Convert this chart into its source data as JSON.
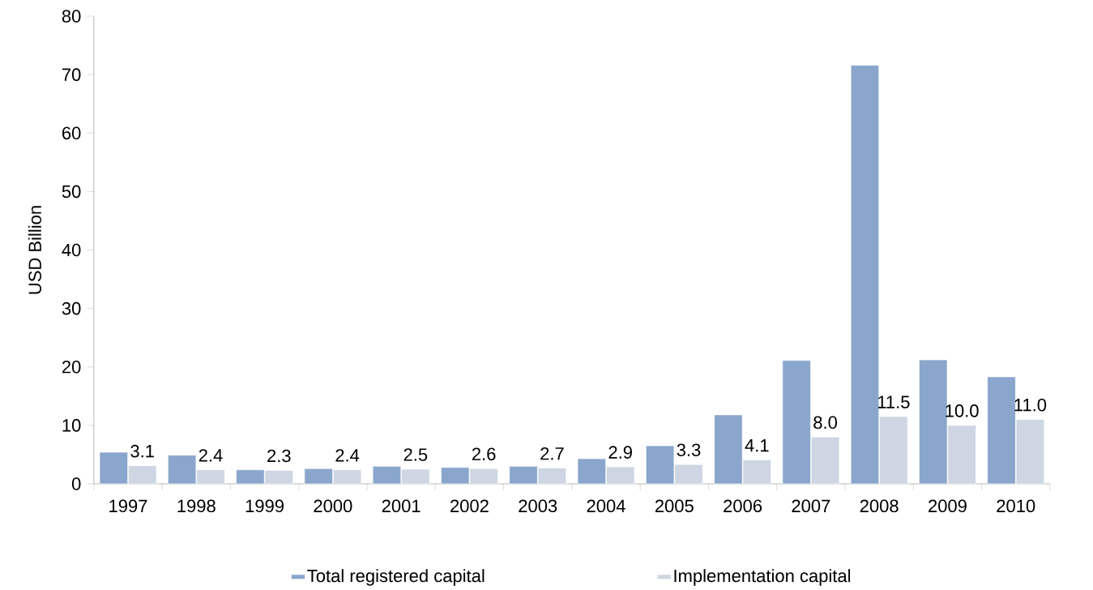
{
  "chart_data": {
    "type": "bar",
    "ylabel": "USD Billion",
    "categories": [
      "1997",
      "1998",
      "1999",
      "2000",
      "2001",
      "2002",
      "2003",
      "2004",
      "2005",
      "2006",
      "2007",
      "2008",
      "2009",
      "2010"
    ],
    "series": [
      {
        "name": "Total registered capital",
        "color": "#8aa6cc",
        "values": [
          5.4,
          4.9,
          2.4,
          2.6,
          3.0,
          2.8,
          3.0,
          4.3,
          6.5,
          11.8,
          21.1,
          71.6,
          21.2,
          18.3
        ]
      },
      {
        "name": "Implementation capital",
        "color": "#cdd6e2",
        "values": [
          3.1,
          2.4,
          2.3,
          2.4,
          2.5,
          2.6,
          2.7,
          2.9,
          3.3,
          4.1,
          8.0,
          11.5,
          10.0,
          11.0
        ],
        "value_labels": [
          "3.1",
          "2.4",
          "2.3",
          "2.4",
          "2.5",
          "2.6",
          "2.7",
          "2.9",
          "3.3",
          "4.1",
          "8.0",
          "11.5",
          "10.0",
          "11.0"
        ]
      }
    ],
    "ylim": [
      0,
      80
    ],
    "yticks": [
      0,
      10,
      20,
      30,
      40,
      50,
      60,
      70,
      80
    ],
    "legend": "bottom",
    "grid": false
  }
}
